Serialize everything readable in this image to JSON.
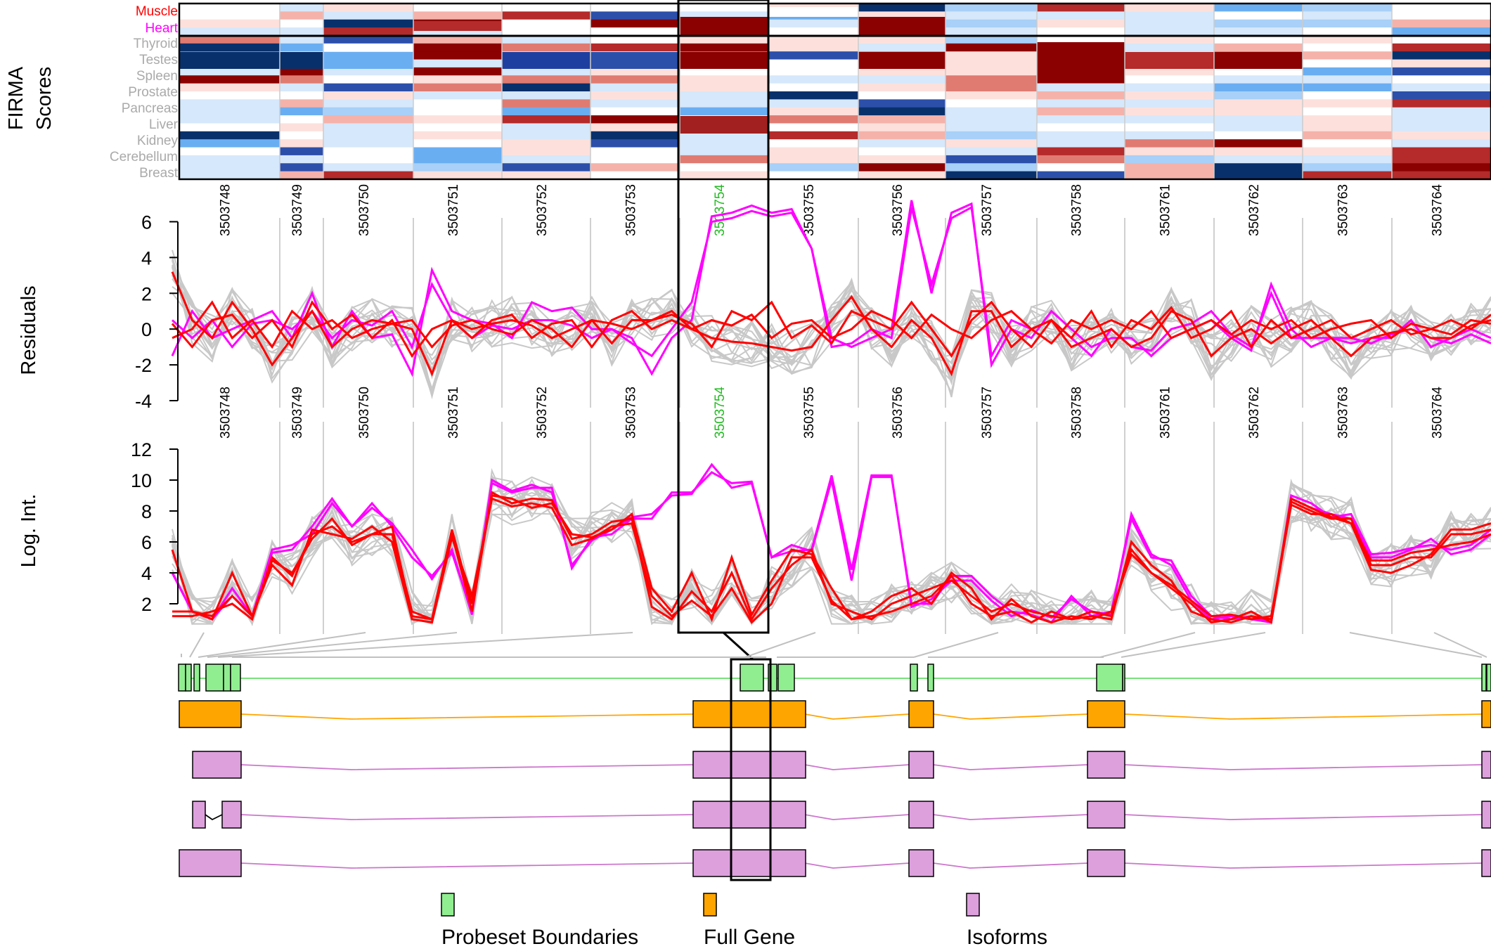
{
  "colors": {
    "highlight_probe": "#22bb22",
    "muscle": "#ff0000",
    "heart": "#ff00ff",
    "other_tissue": "#c8c8c8",
    "text": "#000000",
    "gene_line": "#ffa500",
    "probeset_fill": "#90ee90",
    "fullgene_fill": "#ffa500",
    "isoform_fill": "#dda0dd"
  },
  "chart_data": [
    {
      "type": "heatmap",
      "ylabel_lines": [
        "FIRMA",
        "Scores"
      ],
      "columns": [
        "3503748",
        "3503749",
        "3503750",
        "3503751",
        "3503752",
        "3503753",
        "3503754",
        "3503755",
        "3503756",
        "3503757",
        "3503758",
        "3503761",
        "3503762",
        "3503763",
        "3503764"
      ],
      "highlighted_column": "3503754",
      "row_labels": [
        {
          "label": "Muscle",
          "color": "#ff0000"
        },
        {
          "label": "Heart",
          "color": "#ff00ff"
        },
        {
          "label": "Thyroid",
          "color": "#aaaaaa"
        },
        {
          "label": "Testes",
          "color": "#aaaaaa"
        },
        {
          "label": "Spleen",
          "color": "#aaaaaa"
        },
        {
          "label": "Prostate",
          "color": "#aaaaaa"
        },
        {
          "label": "Pancreas",
          "color": "#aaaaaa"
        },
        {
          "label": "Liver",
          "color": "#aaaaaa"
        },
        {
          "label": "Kidney",
          "color": "#aaaaaa"
        },
        {
          "label": "Cerebellum",
          "color": "#aaaaaa"
        },
        {
          "label": "Breast",
          "color": "#aaaaaa"
        }
      ],
      "separator_after_row": 1
    },
    {
      "type": "line",
      "ylabel": "Residuals",
      "ylim": [
        -4,
        7
      ],
      "yticks": [
        6,
        4,
        2,
        0,
        -2,
        -4
      ],
      "heart_series": [
        [
          -1.5,
          1,
          -0.5,
          0,
          0.5,
          1,
          -0.5,
          2,
          -1,
          1,
          -0.5,
          -0.3,
          -2.5,
          3.3,
          1,
          0.5,
          0.3,
          -0.5,
          1.5,
          1,
          1.2,
          0,
          0,
          -0.5,
          -2.5,
          -0.5,
          0.5,
          6.3,
          6.5,
          6.9,
          6.5,
          6.7,
          4.5,
          -0.5,
          -1,
          -0.5,
          0,
          7.2,
          2,
          6.5,
          7,
          -2,
          0,
          -0.5,
          1,
          0,
          -1,
          -0.5,
          -0.5,
          -1.5,
          -0.5,
          0,
          0.5,
          -0.5,
          -1.2,
          2.5,
          0,
          -1,
          -0.5,
          -0.8,
          -0.5,
          -0.5,
          0.5,
          -1,
          -0.5,
          0,
          -0.5
        ],
        [
          0.5,
          -0.5,
          0.5,
          -1,
          0.3,
          0.5,
          0,
          1,
          -0.5,
          0.5,
          0.2,
          1,
          -1,
          2.5,
          0.5,
          -0.5,
          0.2,
          0,
          0.5,
          0.5,
          0.2,
          -0.5,
          0,
          -0.8,
          -1.5,
          0,
          1.5,
          6,
          6.2,
          6.6,
          6.3,
          6.5,
          4.5,
          -1,
          -0.8,
          0,
          -0.5,
          6.8,
          2.5,
          6.2,
          6.8,
          -1.5,
          0.5,
          0,
          0.5,
          -0.5,
          -1.5,
          0,
          -1,
          -1.2,
          0,
          0.3,
          1,
          -0.3,
          -1,
          2,
          -0.5,
          -0.5,
          -0.5,
          -0.5,
          -0.8,
          -0.3,
          0,
          -0.5,
          -0.8,
          -0.3,
          -0.8
        ]
      ],
      "muscle_series": [
        [
          3.2,
          0.5,
          -0.5,
          1.5,
          0,
          -2,
          -0.5,
          1,
          -1,
          0,
          0.5,
          0.3,
          0,
          -2.5,
          0.5,
          0,
          0.3,
          0.5,
          0.2,
          -0.5,
          0,
          0.5,
          -0.8,
          0.5,
          0.5,
          1,
          0,
          -0.5,
          -0.7,
          -0.8,
          -1,
          -1.2,
          -1,
          0.5,
          1.8,
          0,
          -1,
          0.5,
          -0.5,
          -2.5,
          1,
          1,
          -1,
          0,
          0.5,
          -1,
          -0.5,
          0,
          -1,
          -0.5,
          1,
          0.5,
          -1.5,
          -0.5,
          0,
          -0.8,
          0,
          0.5,
          -0.5,
          -1.5,
          -0.5,
          -0.2,
          0,
          -0.5,
          -0.5,
          0.2,
          0.5
        ],
        [
          -0.5,
          0,
          1.5,
          -0.5,
          0.5,
          -1,
          1,
          0,
          0.5,
          -0.5,
          0,
          0.3,
          0.5,
          -1,
          0.2,
          0.5,
          0,
          -0.3,
          0.5,
          0,
          -1,
          0.5,
          0.3,
          0,
          0.5,
          0.8,
          0.3,
          -1,
          1,
          0.5,
          1.5,
          -0.5,
          0.2,
          -0.8,
          1,
          0.5,
          0,
          1.5,
          0,
          -1.5,
          0.5,
          1.5,
          0,
          -1,
          0.5,
          -0.5,
          1,
          -1,
          0.5,
          0,
          1.2,
          -0.5,
          0,
          1,
          -1,
          0.5,
          -0.5,
          0,
          0.5,
          -0.5,
          0,
          0.5,
          -0.3,
          0,
          0.5,
          0,
          0.8
        ],
        [
          0.3,
          -1,
          0.5,
          0.8,
          -0.5,
          0.5,
          -1,
          1.5,
          0,
          0.8,
          -0.5,
          0.5,
          -1.5,
          0,
          0.5,
          -0.5,
          0.5,
          0.8,
          -0.5,
          0.3,
          0.5,
          -1,
          0.5,
          1,
          0,
          0.5,
          0,
          0.5,
          0.2,
          0.8,
          -0.5,
          0.3,
          0.5,
          -0.5,
          0,
          1,
          0.5,
          -0.5,
          0.8,
          0,
          -0.5,
          0.5,
          1,
          0,
          -0.8,
          0.5,
          0,
          0.5,
          0,
          1,
          -0.5,
          0,
          0.5,
          -0.3,
          0.5,
          0,
          0.5,
          -0.5,
          0,
          0.3,
          0.5,
          -0.5,
          0.3,
          0,
          -0.3,
          0.5,
          0.3
        ]
      ]
    },
    {
      "type": "line",
      "ylabel": "Log. Int.",
      "ylim": [
        0.5,
        12.5
      ],
      "yticks": [
        12,
        10,
        8,
        6,
        4,
        2
      ],
      "heart_series": [
        [
          4,
          1.5,
          1,
          2.5,
          1.2,
          5.5,
          5.8,
          6.5,
          8.5,
          7,
          8.5,
          7,
          5,
          3.8,
          5.3,
          1.5,
          9.8,
          9.2,
          9.5,
          9.5,
          4.3,
          6.3,
          6.5,
          7.5,
          7.5,
          9.2,
          9.2,
          10.5,
          9.8,
          9.9,
          5,
          5.8,
          5.4,
          10,
          3.5,
          10.2,
          10.2,
          2,
          2,
          3.8,
          3.8,
          2.5,
          1.5,
          1.3,
          0.8,
          2.5,
          1.2,
          1.5,
          7.5,
          5,
          4.8,
          2.5,
          1.2,
          1,
          1.2,
          0.8,
          8.8,
          8.2,
          7.8,
          7.5,
          5,
          5,
          5.5,
          6.2,
          5.2,
          5.5,
          6.5
        ],
        [
          4,
          1.5,
          1,
          3,
          1.2,
          5.3,
          5.5,
          7,
          8.8,
          7,
          8.2,
          7.2,
          5.5,
          3.6,
          5.5,
          1.3,
          10,
          9.3,
          9.7,
          9.2,
          4.5,
          6.1,
          6.8,
          7.6,
          7.8,
          9,
          9.1,
          11,
          9.5,
          9.8,
          5,
          5.4,
          5.5,
          10.3,
          4.2,
          10.3,
          10.3,
          1.8,
          2.3,
          3.5,
          3.5,
          2.2,
          1.2,
          1.6,
          1.1,
          2.3,
          1.5,
          1.3,
          7.8,
          5.2,
          4.5,
          2.2,
          1,
          1.2,
          1,
          0.8,
          9,
          8.5,
          7.6,
          7.8,
          5.2,
          5.3,
          5.6,
          5.8,
          5.5,
          5.8,
          6.8
        ]
      ],
      "muscle_series": [
        [
          5.5,
          1.5,
          1,
          4,
          1.2,
          4.8,
          4,
          6.2,
          7.5,
          5.8,
          6.5,
          6.5,
          1.5,
          1,
          6.5,
          1.5,
          9.2,
          8.5,
          8.8,
          8.7,
          6.2,
          6.5,
          7.3,
          7.5,
          1.8,
          1,
          2.8,
          1.5,
          4,
          1,
          3,
          4.5,
          5.5,
          2,
          1.5,
          1,
          2,
          2.5,
          3,
          3.5,
          2.5,
          1.5,
          2,
          1.5,
          1.2,
          1,
          1.5,
          1.2,
          5.5,
          4,
          3,
          2,
          0.8,
          1,
          1.5,
          0.8,
          8.6,
          8,
          7.5,
          7.5,
          4.5,
          4.5,
          5,
          5,
          6.5,
          6.5,
          6.8
        ],
        [
          1.5,
          1.5,
          1.2,
          2.5,
          1.2,
          4.5,
          3.2,
          6.8,
          6.5,
          6.2,
          7,
          6,
          1,
          0.8,
          6.3,
          2.5,
          8.8,
          8.3,
          8.5,
          8.2,
          5.8,
          6.2,
          7,
          7.2,
          2.5,
          1.2,
          2.2,
          1.2,
          3,
          0.8,
          2,
          5,
          5,
          2.2,
          1,
          1.2,
          1.5,
          2,
          2.5,
          3.8,
          2,
          1.2,
          1.5,
          0.8,
          1.5,
          1,
          1.2,
          1,
          6,
          4.5,
          3.5,
          1.5,
          1,
          0.8,
          1.2,
          1,
          8.8,
          8.2,
          7.6,
          7.2,
          4.2,
          4,
          4.5,
          5.2,
          6.8,
          6.8,
          7.2
        ],
        [
          1.2,
          1.2,
          1.5,
          2,
          1,
          5,
          3.8,
          6.5,
          7,
          6,
          6.5,
          7,
          1.2,
          1,
          6.8,
          2,
          9,
          8.8,
          8.2,
          8.5,
          6.5,
          6.3,
          6.8,
          7.8,
          3,
          1.5,
          4,
          1,
          5,
          1.3,
          3.5,
          5.5,
          5.2,
          3,
          1,
          1.5,
          2.5,
          3,
          2,
          4,
          3,
          1,
          2.3,
          1.2,
          0.8,
          1.2,
          1,
          1.5,
          5.2,
          4,
          3.2,
          2.2,
          1.2,
          1.3,
          1,
          1.2,
          8.4,
          7.8,
          7.8,
          7.2,
          4.8,
          4.8,
          5.3,
          5.5,
          5.8,
          6,
          6.5
        ]
      ]
    }
  ],
  "gene_model": {
    "tracks": [
      "probesets",
      "full_gene",
      "isoform_1",
      "isoform_2",
      "isoform_3"
    ]
  },
  "legend": [
    {
      "label": "Probeset Boundaries",
      "color": "#90ee90"
    },
    {
      "label": "Full Gene",
      "color": "#ffa500"
    },
    {
      "label": "Isoforms",
      "color": "#dda0dd"
    }
  ]
}
